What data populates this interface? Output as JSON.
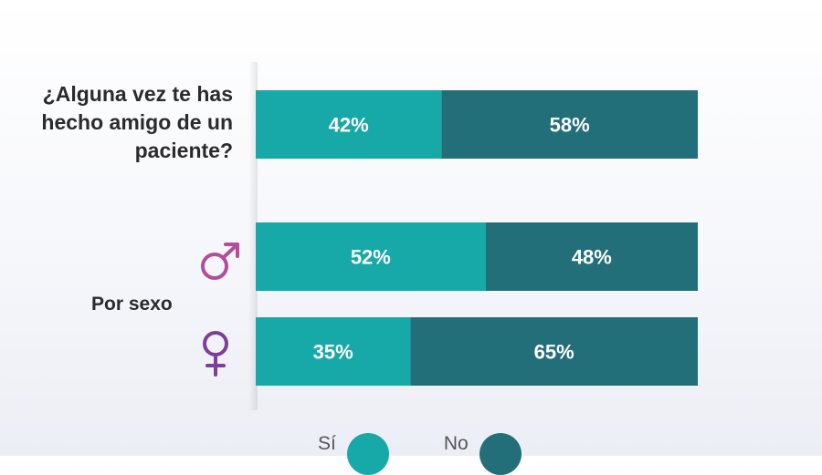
{
  "colors": {
    "si": "#17a8a8",
    "no": "#236f79",
    "male": "#b34d99",
    "female": "#7d3f9b"
  },
  "question": "¿Alguna vez te has hecho amigo de un paciente?",
  "group_label": "Por sexo",
  "icons": {
    "male": "male-symbol",
    "female": "female-symbol"
  },
  "legend": {
    "si": "Sí",
    "no": "No"
  },
  "chart_data": {
    "type": "bar",
    "orientation": "horizontal",
    "stacked": true,
    "categories": [
      "¿Alguna vez te has hecho amigo de un paciente?",
      "♂",
      "♀"
    ],
    "series": [
      {
        "name": "Sí",
        "values": [
          42,
          52,
          35
        ],
        "labels": [
          "42%",
          "52%",
          "35%"
        ]
      },
      {
        "name": "No",
        "values": [
          58,
          48,
          65
        ],
        "labels": [
          "58%",
          "48%",
          "65%"
        ]
      }
    ],
    "xlim": [
      0,
      100
    ],
    "unit": "%",
    "legend_position": "bottom"
  }
}
